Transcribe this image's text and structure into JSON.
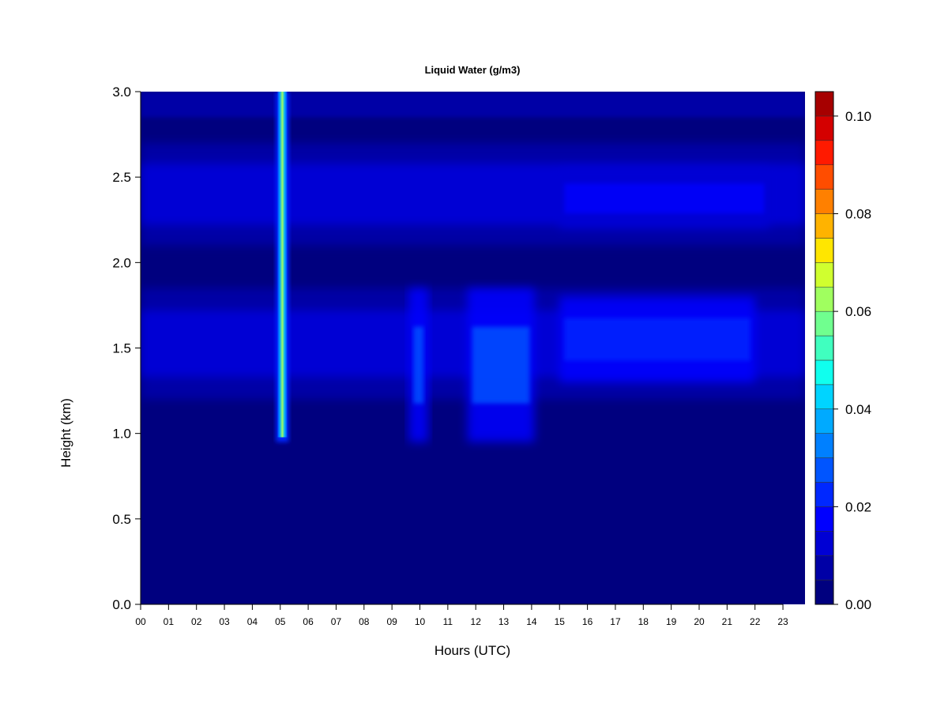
{
  "chart_data": {
    "type": "heatmap",
    "title": "Liquid Water (g/m3)",
    "xlabel": "Hours (UTC)",
    "ylabel": "Height (km)",
    "xlim": [
      0,
      23.85
    ],
    "ylim": [
      0,
      3.0
    ],
    "x_ticks": [
      0,
      1,
      2,
      3,
      4,
      5,
      6,
      7,
      8,
      9,
      10,
      11,
      12,
      13,
      14,
      15,
      16,
      17,
      18,
      19,
      20,
      21,
      22,
      23
    ],
    "x_tick_labels": [
      "00",
      "01",
      "02",
      "03",
      "04",
      "05",
      "06",
      "07",
      "08",
      "09",
      "10",
      "11",
      "12",
      "13",
      "14",
      "15",
      "16",
      "17",
      "18",
      "19",
      "20",
      "21",
      "22",
      "23"
    ],
    "y_ticks": [
      0.0,
      0.5,
      1.0,
      1.5,
      2.0,
      2.5,
      3.0
    ],
    "y_tick_labels": [
      "0.0",
      "0.5",
      "1.0",
      "1.5",
      "2.0",
      "2.5",
      "3.0"
    ],
    "colorbar": {
      "levels": [
        0.0,
        0.005,
        0.01,
        0.015,
        0.02,
        0.025,
        0.03,
        0.035,
        0.04,
        0.045,
        0.05,
        0.055,
        0.06,
        0.065,
        0.07,
        0.075,
        0.08,
        0.085,
        0.09,
        0.095,
        0.1,
        0.105
      ],
      "colors": [
        "#00007f",
        "#0000a6",
        "#0000d4",
        "#0000ff",
        "#0028ff",
        "#0055ff",
        "#0080ff",
        "#00aaff",
        "#00d4ff",
        "#10ffee",
        "#40ffbf",
        "#70ff8f",
        "#a0ff5f",
        "#d0ff2f",
        "#ffe600",
        "#ffb300",
        "#ff8000",
        "#ff4d00",
        "#ff1a00",
        "#d40000",
        "#a60000"
      ],
      "tick_values": [
        0.0,
        0.02,
        0.04,
        0.06,
        0.08,
        0.1
      ],
      "tick_labels": [
        "0.00",
        "0.02",
        "0.04",
        "0.06",
        "0.08",
        "0.10"
      ]
    },
    "layers": [
      {
        "height_km": [
          1.2,
          1.85
        ],
        "peak_height_km": 1.55,
        "typical_value": 0.018
      },
      {
        "height_km": [
          2.1,
          2.7
        ],
        "peak_height_km": 2.4,
        "typical_value": 0.014
      }
    ],
    "features": [
      {
        "hours": [
          4.85,
          5.3
        ],
        "height_km": [
          0.95,
          3.0
        ],
        "max_value": 0.06
      },
      {
        "hours": [
          9.6,
          10.3
        ],
        "height_km": [
          0.95,
          1.85
        ],
        "max_value": 0.032
      },
      {
        "hours": [
          11.7,
          14.1
        ],
        "height_km": [
          0.95,
          1.85
        ],
        "max_value": 0.03
      },
      {
        "hours": [
          15.0,
          22.0
        ],
        "height_km": [
          1.3,
          1.8
        ],
        "max_value": 0.028
      },
      {
        "hours": [
          15.0,
          22.5
        ],
        "height_km": [
          2.2,
          2.55
        ],
        "max_value": 0.022
      }
    ]
  }
}
